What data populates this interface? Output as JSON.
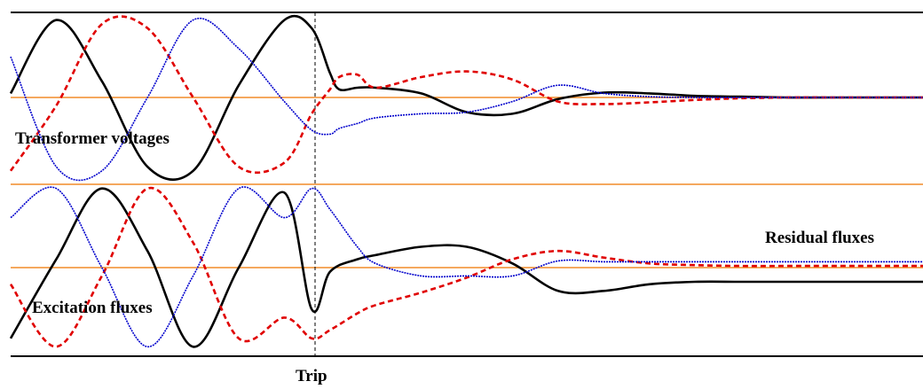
{
  "chart_data": [
    {
      "type": "line",
      "title": "",
      "label": "Transformer voltages",
      "x": [
        0,
        0.05,
        0.1,
        0.15,
        0.2,
        0.25,
        0.3,
        0.33,
        0.35,
        0.36,
        0.38,
        0.4,
        0.45,
        0.5,
        0.55,
        0.6,
        0.65,
        0.7,
        0.75,
        0.8,
        0.85,
        0.9,
        1.0
      ],
      "series": [
        {
          "name": "",
          "color": "#000000",
          "values": [
            0.05,
            0.95,
            0.2,
            -0.85,
            -0.9,
            0.15,
            0.95,
            0.85,
            0.3,
            0.1,
            0.12,
            0.12,
            0.05,
            -0.18,
            -0.2,
            -0.02,
            0.06,
            0.05,
            0.02,
            0.01,
            0.0,
            0.0,
            0.0
          ]
        },
        {
          "name": "",
          "color": "#e00000",
          "values": [
            -0.9,
            -0.1,
            0.9,
            0.85,
            0.0,
            -0.85,
            -0.8,
            -0.2,
            0.1,
            0.25,
            0.28,
            0.12,
            0.25,
            0.32,
            0.22,
            -0.05,
            -0.08,
            -0.06,
            -0.03,
            -0.01,
            0.0,
            0.0,
            0.0
          ]
        },
        {
          "name": "",
          "color": "#0000cc",
          "values": [
            0.5,
            -0.85,
            -0.9,
            0.0,
            0.95,
            0.6,
            -0.05,
            -0.4,
            -0.45,
            -0.38,
            -0.32,
            -0.25,
            -0.2,
            -0.18,
            -0.05,
            0.15,
            0.05,
            0.01,
            0.0,
            0.0,
            0.0,
            0.0,
            0.0
          ]
        }
      ],
      "baseline": 0,
      "trip_x": 0.33
    },
    {
      "type": "line",
      "title": "",
      "label": "Excitation fluxes",
      "annotation": "Residual fluxes",
      "x": [
        0,
        0.05,
        0.1,
        0.15,
        0.2,
        0.25,
        0.3,
        0.33,
        0.35,
        0.38,
        0.4,
        0.45,
        0.5,
        0.55,
        0.6,
        0.65,
        0.7,
        0.75,
        0.8,
        0.85,
        0.9,
        1.0
      ],
      "series": [
        {
          "name": "",
          "color": "#000000",
          "values": [
            -0.85,
            0.1,
            0.95,
            0.2,
            -0.95,
            0.0,
            0.9,
            -0.5,
            -0.05,
            0.1,
            0.15,
            0.25,
            0.25,
            0.05,
            -0.28,
            -0.28,
            -0.2,
            -0.17,
            -0.17,
            -0.17,
            -0.17,
            -0.17
          ]
        },
        {
          "name": "",
          "color": "#e00000",
          "values": [
            -0.2,
            -0.95,
            -0.1,
            0.95,
            0.3,
            -0.85,
            -0.6,
            -0.85,
            -0.75,
            -0.55,
            -0.45,
            -0.3,
            -0.12,
            0.1,
            0.2,
            0.12,
            0.05,
            0.03,
            0.02,
            0.02,
            0.02,
            0.02
          ]
        },
        {
          "name": "",
          "color": "#0000cc",
          "values": [
            0.6,
            0.95,
            0.0,
            -0.95,
            -0.1,
            0.95,
            0.6,
            0.95,
            0.7,
            0.25,
            0.05,
            -0.1,
            -0.1,
            -0.1,
            0.08,
            0.07,
            0.07,
            0.07,
            0.07,
            0.07,
            0.07,
            0.07
          ]
        }
      ],
      "baseline": 0,
      "trip_x": 0.33
    }
  ],
  "labels": {
    "voltages": "Transformer voltages",
    "fluxes": "Excitation fluxes",
    "residual": "Residual fluxes",
    "trip": "Trip"
  }
}
